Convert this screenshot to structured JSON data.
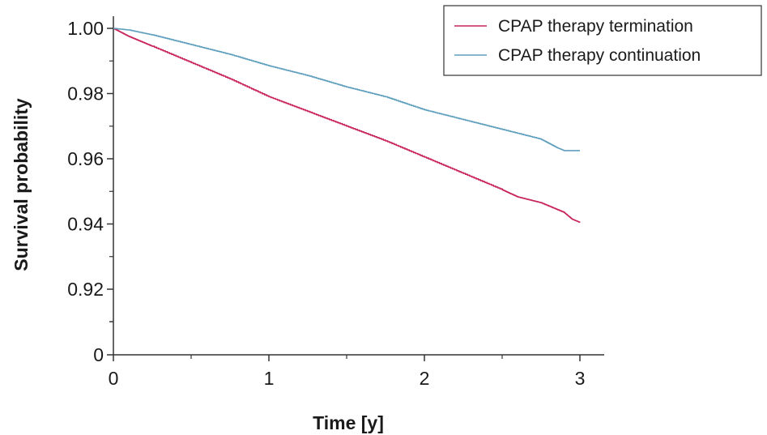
{
  "chart_data": {
    "type": "line",
    "xlabel": "Time [y]",
    "ylabel": "Survival probability",
    "xlim": [
      0,
      3
    ],
    "ylim": [
      0.9,
      1.0
    ],
    "y_axis_break_label": "0",
    "x_ticks": [
      {
        "value": 0,
        "label": "0"
      },
      {
        "value": 1,
        "label": "1"
      },
      {
        "value": 2,
        "label": "2"
      },
      {
        "value": 3,
        "label": "3"
      }
    ],
    "x_minor_ticks": [
      0.5,
      1.5,
      2.5
    ],
    "y_ticks": [
      {
        "value": 1.0,
        "label": "1.00"
      },
      {
        "value": 0.98,
        "label": "0.98"
      },
      {
        "value": 0.96,
        "label": "0.96"
      },
      {
        "value": 0.94,
        "label": "0.94"
      },
      {
        "value": 0.92,
        "label": "0.92"
      }
    ],
    "y_minor_ticks": [
      0.99,
      0.97,
      0.95,
      0.93,
      0.91
    ],
    "legend_position": "top-right",
    "grid": false,
    "series": [
      {
        "name": "CPAP therapy termination",
        "color": "#c8235a",
        "x": [
          0,
          0.1,
          0.25,
          0.5,
          0.75,
          1.0,
          1.25,
          1.5,
          1.75,
          2.0,
          2.25,
          2.5,
          2.6,
          2.75,
          2.9,
          2.95,
          3.0
        ],
        "y": [
          1.0,
          0.9975,
          0.9945,
          0.9895,
          0.9845,
          0.979,
          0.9745,
          0.97,
          0.9655,
          0.9605,
          0.9555,
          0.9505,
          0.9483,
          0.9465,
          0.9435,
          0.9415,
          0.9405
        ]
      },
      {
        "name": "CPAP therapy continuation",
        "color": "#5f9fbe",
        "x": [
          0,
          0.1,
          0.25,
          0.5,
          0.75,
          1.0,
          1.25,
          1.5,
          1.75,
          2.0,
          2.25,
          2.5,
          2.75,
          2.85,
          2.9,
          3.0
        ],
        "y": [
          1.0,
          0.9995,
          0.998,
          0.995,
          0.992,
          0.9885,
          0.9855,
          0.982,
          0.979,
          0.975,
          0.972,
          0.969,
          0.966,
          0.9635,
          0.9625,
          0.9625
        ]
      }
    ]
  }
}
